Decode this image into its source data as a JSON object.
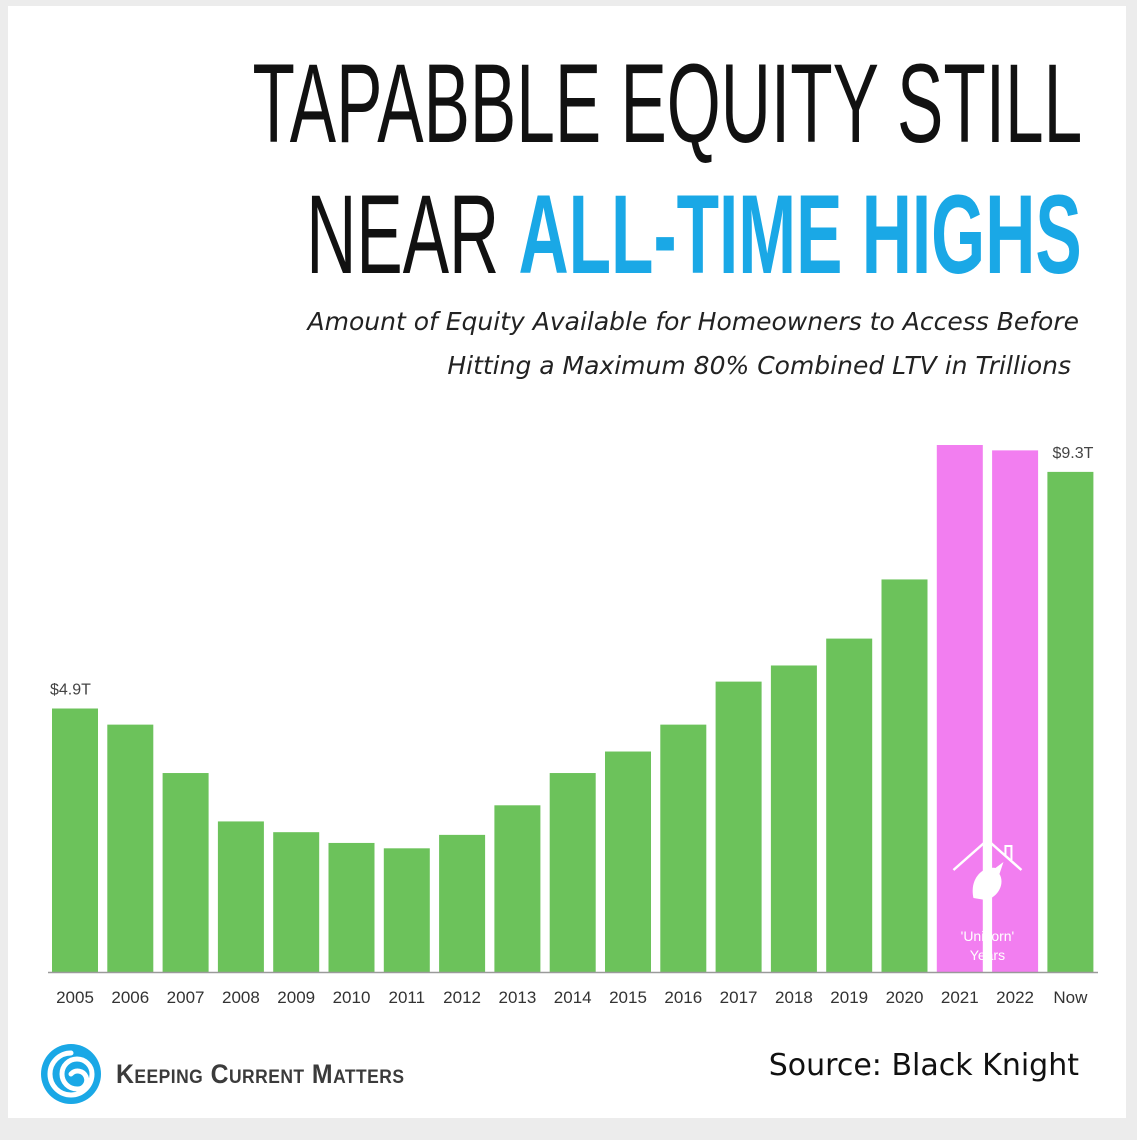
{
  "header": {
    "title_line1": "TAPABBLE EQUITY STILL",
    "title_line2_prefix": "NEAR ",
    "title_line2_highlight": "ALL-TIME HIGHS",
    "subtitle_line1": "Amount of Equity Available for Homeowners to Access Before",
    "subtitle_line2": "Hitting a Maximum 80% Combined LTV in Trillions"
  },
  "colors": {
    "bar_default": "#6cc25b",
    "bar_highlight": "#f27ef0",
    "title_accent": "#1aa8e6",
    "logo": "#1aa8e6"
  },
  "chart_data": {
    "type": "bar",
    "categories": [
      "2005",
      "2006",
      "2007",
      "2008",
      "2009",
      "2010",
      "2011",
      "2012",
      "2013",
      "2014",
      "2015",
      "2016",
      "2017",
      "2018",
      "2019",
      "2020",
      "2021",
      "2022",
      "Now"
    ],
    "values": [
      4.9,
      4.6,
      3.7,
      2.8,
      2.6,
      2.4,
      2.3,
      2.55,
      3.1,
      3.7,
      4.1,
      4.6,
      5.4,
      5.7,
      6.2,
      7.3,
      9.8,
      9.7,
      9.3
    ],
    "highlight_indices": [
      16,
      17
    ],
    "highlight_label_lines": [
      "'Unicorn'",
      "Years"
    ],
    "data_labels": [
      {
        "index": 0,
        "text": "$4.9T"
      },
      {
        "index": 18,
        "text": "$9.3T"
      }
    ],
    "ylim": [
      0,
      9.8
    ],
    "title": "",
    "xlabel": "",
    "ylabel": "",
    "grid": false,
    "legend": "none"
  },
  "footer": {
    "brand": "Keeping Current Matters",
    "source": "Source: Black Knight",
    "logo_icon": "swirl-logo-icon",
    "unicorn_icon": "unicorn-house-icon"
  }
}
